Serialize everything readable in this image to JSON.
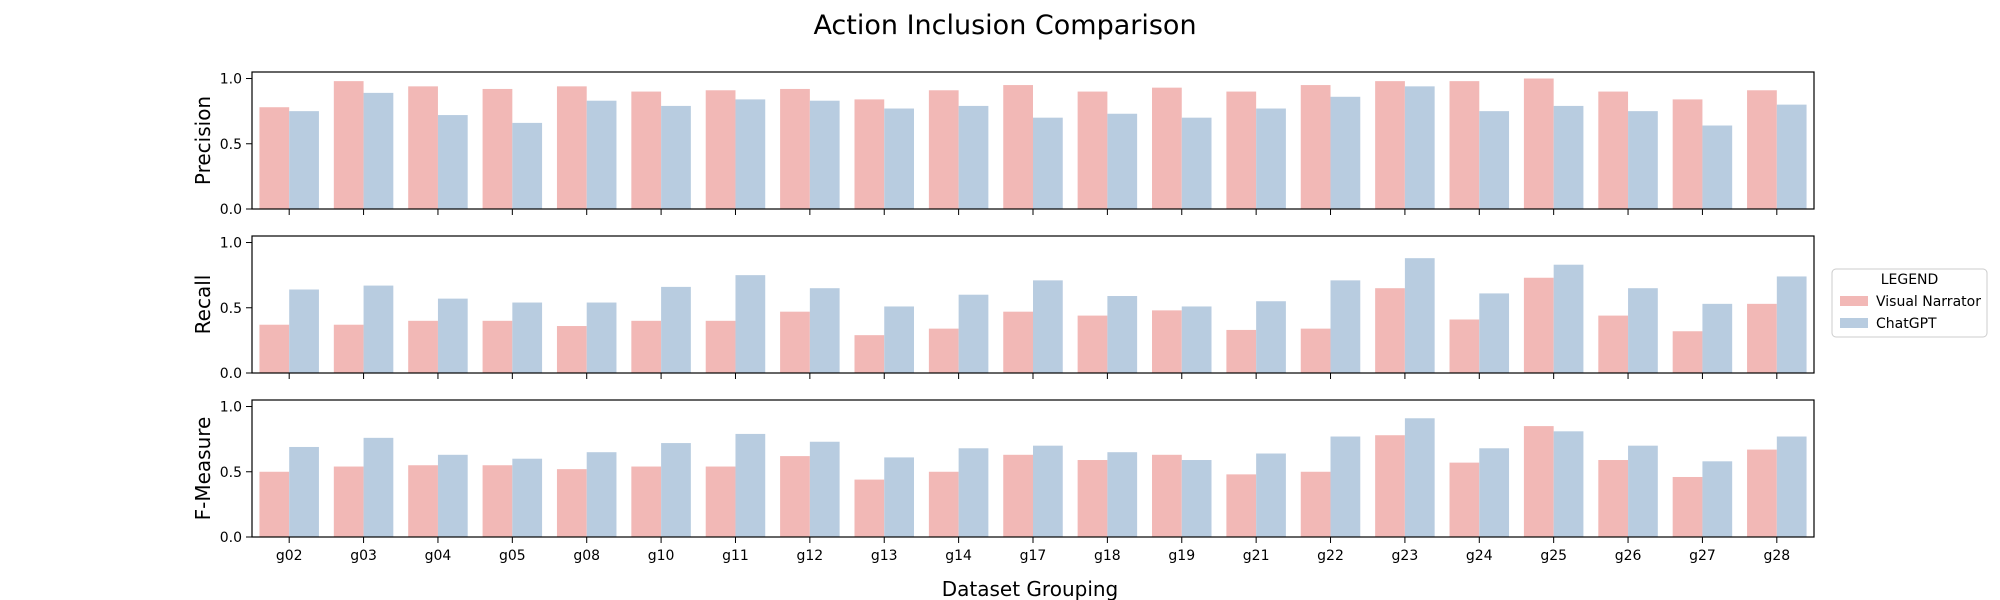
{
  "figure": {
    "title": "Action Inclusion Comparison",
    "xlabel": "Dataset Grouping",
    "legend_title": "LEGEND"
  },
  "colors": {
    "Visual Narrator": "#f2b8b6",
    "ChatGPT": "#b8cce0"
  },
  "chart_data": [
    {
      "type": "bar",
      "ylabel": "Precision",
      "ylim": [
        0,
        1.05
      ],
      "yticks": [
        "0.0",
        "0.5",
        "1.0"
      ],
      "categories": [
        "g02",
        "g03",
        "g04",
        "g05",
        "g08",
        "g10",
        "g11",
        "g12",
        "g13",
        "g14",
        "g17",
        "g18",
        "g19",
        "g21",
        "g22",
        "g23",
        "g24",
        "g25",
        "g26",
        "g27",
        "g28"
      ],
      "series": [
        {
          "name": "Visual Narrator",
          "values": [
            0.78,
            0.98,
            0.94,
            0.92,
            0.94,
            0.9,
            0.91,
            0.92,
            0.84,
            0.91,
            0.95,
            0.9,
            0.93,
            0.9,
            0.95,
            0.98,
            0.98,
            1.0,
            0.9,
            0.84,
            0.91
          ]
        },
        {
          "name": "ChatGPT",
          "values": [
            0.75,
            0.89,
            0.72,
            0.66,
            0.83,
            0.79,
            0.84,
            0.83,
            0.77,
            0.79,
            0.7,
            0.73,
            0.7,
            0.77,
            0.86,
            0.94,
            0.75,
            0.79,
            0.75,
            0.64,
            0.8
          ]
        }
      ]
    },
    {
      "type": "bar",
      "ylabel": "Recall",
      "ylim": [
        0,
        1.05
      ],
      "yticks": [
        "0.0",
        "0.5",
        "1.0"
      ],
      "categories": [
        "g02",
        "g03",
        "g04",
        "g05",
        "g08",
        "g10",
        "g11",
        "g12",
        "g13",
        "g14",
        "g17",
        "g18",
        "g19",
        "g21",
        "g22",
        "g23",
        "g24",
        "g25",
        "g26",
        "g27",
        "g28"
      ],
      "series": [
        {
          "name": "Visual Narrator",
          "values": [
            0.37,
            0.37,
            0.4,
            0.4,
            0.36,
            0.4,
            0.4,
            0.47,
            0.29,
            0.34,
            0.47,
            0.44,
            0.48,
            0.33,
            0.34,
            0.65,
            0.41,
            0.73,
            0.44,
            0.32,
            0.53
          ]
        },
        {
          "name": "ChatGPT",
          "values": [
            0.64,
            0.67,
            0.57,
            0.54,
            0.54,
            0.66,
            0.75,
            0.65,
            0.51,
            0.6,
            0.71,
            0.59,
            0.51,
            0.55,
            0.71,
            0.88,
            0.61,
            0.83,
            0.65,
            0.53,
            0.74
          ]
        }
      ]
    },
    {
      "type": "bar",
      "ylabel": "F-Measure",
      "ylim": [
        0,
        1.05
      ],
      "yticks": [
        "0.0",
        "0.5",
        "1.0"
      ],
      "categories": [
        "g02",
        "g03",
        "g04",
        "g05",
        "g08",
        "g10",
        "g11",
        "g12",
        "g13",
        "g14",
        "g17",
        "g18",
        "g19",
        "g21",
        "g22",
        "g23",
        "g24",
        "g25",
        "g26",
        "g27",
        "g28"
      ],
      "series": [
        {
          "name": "Visual Narrator",
          "values": [
            0.5,
            0.54,
            0.55,
            0.55,
            0.52,
            0.54,
            0.54,
            0.62,
            0.44,
            0.5,
            0.63,
            0.59,
            0.63,
            0.48,
            0.5,
            0.78,
            0.57,
            0.85,
            0.59,
            0.46,
            0.67
          ]
        },
        {
          "name": "ChatGPT",
          "values": [
            0.69,
            0.76,
            0.63,
            0.6,
            0.65,
            0.72,
            0.79,
            0.73,
            0.61,
            0.68,
            0.7,
            0.65,
            0.59,
            0.64,
            0.77,
            0.91,
            0.68,
            0.81,
            0.7,
            0.58,
            0.77
          ]
        }
      ]
    }
  ]
}
